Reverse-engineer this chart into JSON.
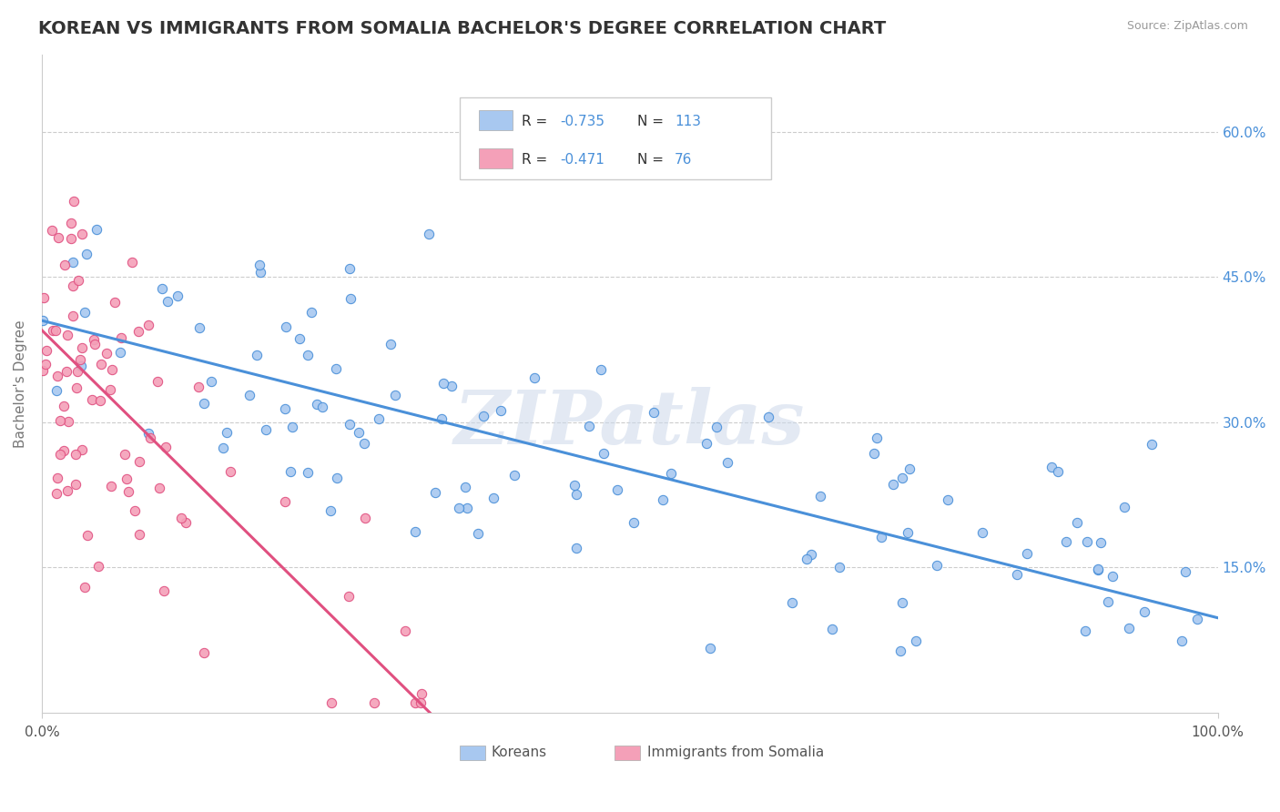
{
  "title": "KOREAN VS IMMIGRANTS FROM SOMALIA BACHELOR'S DEGREE CORRELATION CHART",
  "source_text": "Source: ZipAtlas.com",
  "ylabel": "Bachelor's Degree",
  "right_ytick_labels": [
    "60.0%",
    "45.0%",
    "30.0%",
    "15.0%"
  ],
  "right_ytick_values": [
    0.6,
    0.45,
    0.3,
    0.15
  ],
  "xlim": [
    0.0,
    1.0
  ],
  "ylim": [
    0.0,
    0.68
  ],
  "xtick_labels": [
    "0.0%",
    "100.0%"
  ],
  "xtick_values": [
    0.0,
    1.0
  ],
  "korean_color": "#a8c8f0",
  "somalia_color": "#f4a0b8",
  "korean_line_color": "#4a90d9",
  "somalia_line_color": "#e05080",
  "korean_R": -0.735,
  "korean_N": 113,
  "somalia_R": -0.471,
  "somalia_N": 76,
  "legend_korean_label": "Koreans",
  "legend_somalia_label": "Immigrants from Somalia",
  "watermark": "ZIPatlas",
  "background_color": "#ffffff",
  "grid_color": "#cccccc",
  "title_color": "#333333",
  "title_fontsize": 14,
  "axis_label_color": "#777777",
  "right_tick_color": "#4a90d9",
  "korean_line_x0": 0.0,
  "korean_line_y0": 0.405,
  "korean_line_x1": 1.0,
  "korean_line_y1": 0.098,
  "somalia_line_x0": 0.0,
  "somalia_line_y0": 0.395,
  "somalia_line_x1": 0.33,
  "somalia_line_y1": 0.0
}
